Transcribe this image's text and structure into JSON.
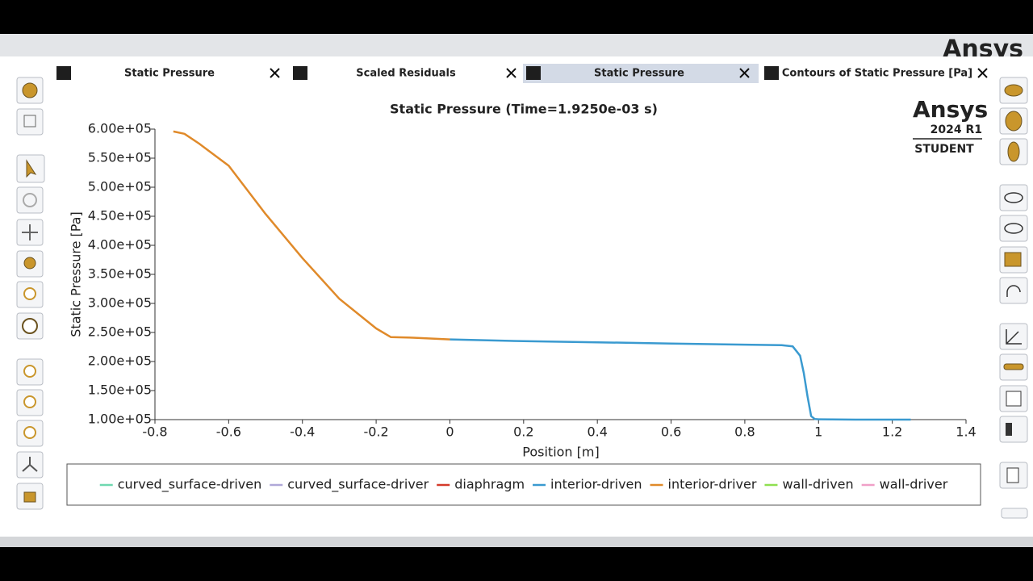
{
  "window": {
    "brand": "Ansys"
  },
  "tabs": [
    {
      "title": "Static Pressure",
      "active": false
    },
    {
      "title": "Scaled Residuals",
      "active": false
    },
    {
      "title": "Static Pressure",
      "active": true
    },
    {
      "title": "Contours of Static Pressure [Pa]",
      "active": false
    }
  ],
  "watermark": {
    "brand": "Ansys",
    "version": "2024 R1",
    "edition": "STUDENT"
  },
  "chart_data": {
    "type": "line",
    "title": "Static Pressure (Time=1.9250e-03 s)",
    "x_label": "Position [m]",
    "y_label": "Static Pressure [Pa]",
    "xlim": [
      -0.8,
      1.4
    ],
    "ylim": [
      100000,
      600000
    ],
    "xticks": [
      -0.8,
      -0.6,
      -0.4,
      -0.2,
      0,
      0.2,
      0.4,
      0.6,
      0.8,
      1,
      1.2,
      1.4
    ],
    "yticks": [
      {
        "value": 100000,
        "label": "1.00e+05"
      },
      {
        "value": 150000,
        "label": "1.50e+05"
      },
      {
        "value": 200000,
        "label": "2.00e+05"
      },
      {
        "value": 250000,
        "label": "2.50e+05"
      },
      {
        "value": 300000,
        "label": "3.00e+05"
      },
      {
        "value": 350000,
        "label": "3.50e+05"
      },
      {
        "value": 400000,
        "label": "4.00e+05"
      },
      {
        "value": 450000,
        "label": "4.50e+05"
      },
      {
        "value": 500000,
        "label": "5.00e+05"
      },
      {
        "value": 550000,
        "label": "5.50e+05"
      },
      {
        "value": 600000,
        "label": "6.00e+05"
      }
    ],
    "series": [
      {
        "name": "curved_surface-driven",
        "color": "#6fd8b0",
        "x": [],
        "values": []
      },
      {
        "name": "curved_surface-driver",
        "color": "#b0a8d8",
        "x": [],
        "values": []
      },
      {
        "name": "diaphragm",
        "color": "#d43a2a",
        "x": [],
        "values": []
      },
      {
        "name": "interior-driven",
        "color": "#3a9ad0",
        "x": [
          0,
          0.2,
          0.4,
          0.6,
          0.8,
          0.9,
          0.93,
          0.95,
          0.96,
          0.97,
          0.98,
          0.99,
          1.0,
          1.1,
          1.25
        ],
        "values": [
          238000,
          235000,
          233000,
          231000,
          229000,
          228000,
          226000,
          210000,
          180000,
          140000,
          106000,
          101000,
          100500,
          100000,
          100000
        ]
      },
      {
        "name": "interior-driver",
        "color": "#e08a2a",
        "x": [
          -0.75,
          -0.72,
          -0.68,
          -0.6,
          -0.5,
          -0.4,
          -0.3,
          -0.2,
          -0.16,
          -0.1,
          0
        ],
        "values": [
          596000,
          592000,
          575000,
          537000,
          454000,
          378000,
          308000,
          257000,
          242000,
          241000,
          238000
        ]
      },
      {
        "name": "wall-driven",
        "color": "#8fe050",
        "x": [],
        "values": []
      },
      {
        "name": "wall-driver",
        "color": "#f0a0c8",
        "x": [],
        "values": []
      }
    ]
  }
}
